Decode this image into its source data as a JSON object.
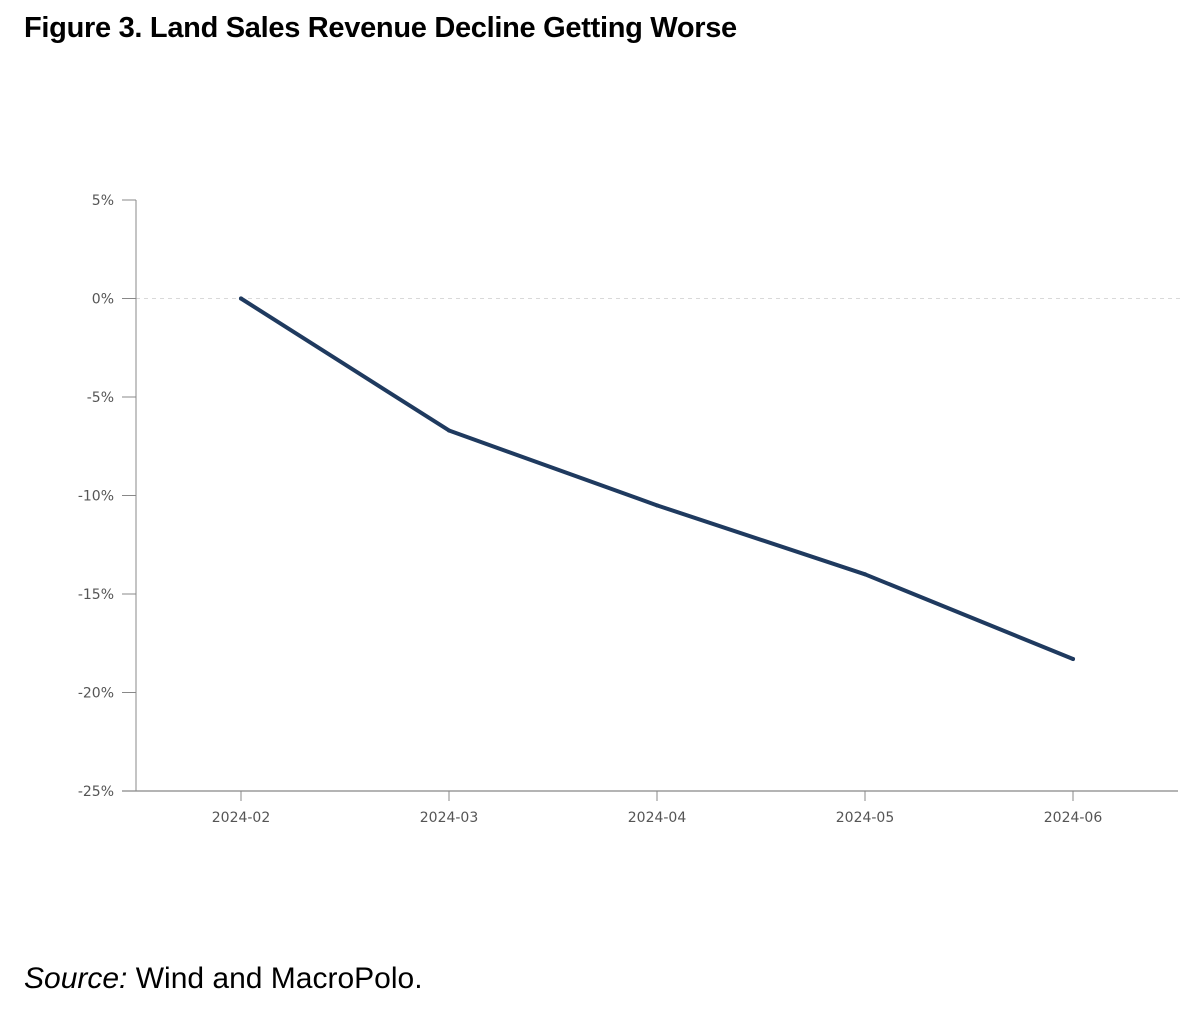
{
  "figure_title": "Figure 3. Land Sales Revenue Decline Getting Worse",
  "source": {
    "label": "Source:",
    "text": " Wind and MacroPolo."
  },
  "colors": {
    "line": "#1f3a5f",
    "axis": "#888888",
    "zero_line": "#d9d9d9",
    "tick_text": "#555555"
  },
  "chart_data": {
    "type": "line",
    "x": [
      "2024-02",
      "2024-03",
      "2024-04",
      "2024-05",
      "2024-06"
    ],
    "series": [
      {
        "values": [
          0.0,
          -6.7,
          -10.5,
          -14.0,
          -18.3
        ]
      }
    ],
    "yticks": [
      5,
      0,
      -5,
      -10,
      -15,
      -20,
      -25
    ],
    "ytick_labels": [
      "5%",
      "0%",
      "-5%",
      "-10%",
      "-15%",
      "-20%",
      "-25%"
    ],
    "ylim": [
      -25,
      5
    ],
    "zero_line": "dashed",
    "grid": false
  }
}
